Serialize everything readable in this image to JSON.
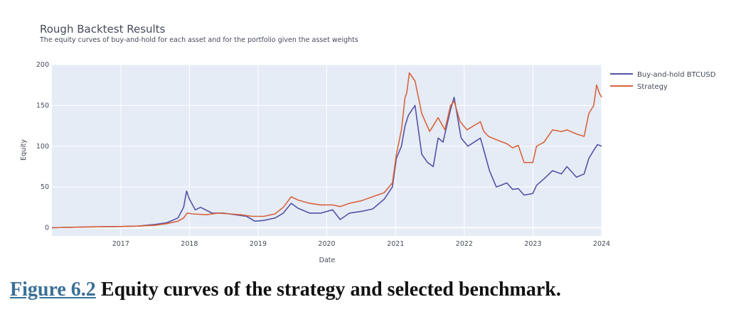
{
  "chart_data": {
    "type": "line",
    "title": "Rough Backtest Results",
    "subtitle": "The equity curves of buy-and-hold for each asset and for the portfolio given the asset weights",
    "xlabel": "Date",
    "ylabel": "Equity",
    "xlim": [
      "2016-01-01",
      "2024-01-01"
    ],
    "ylim": [
      -10,
      200
    ],
    "x_ticks": [
      "2017",
      "2018",
      "2019",
      "2020",
      "2021",
      "2022",
      "2023",
      "2024"
    ],
    "y_ticks": [
      0,
      50,
      100,
      150,
      200
    ],
    "grid": true,
    "legend_position": "top-right",
    "series": [
      {
        "name": "Buy-and-hold BTCUSD",
        "color": "#5452a6",
        "points": [
          [
            "2016-01-01",
            0
          ],
          [
            "2016-07-01",
            1
          ],
          [
            "2017-01-01",
            1.5
          ],
          [
            "2017-04-01",
            2
          ],
          [
            "2017-07-01",
            4
          ],
          [
            "2017-09-01",
            6
          ],
          [
            "2017-11-01",
            12
          ],
          [
            "2017-12-01",
            25
          ],
          [
            "2017-12-17",
            45
          ],
          [
            "2018-01-01",
            35
          ],
          [
            "2018-02-01",
            22
          ],
          [
            "2018-03-01",
            25
          ],
          [
            "2018-05-01",
            18
          ],
          [
            "2018-07-01",
            18
          ],
          [
            "2018-09-01",
            16
          ],
          [
            "2018-11-01",
            14
          ],
          [
            "2018-12-15",
            8
          ],
          [
            "2019-02-01",
            9
          ],
          [
            "2019-04-01",
            12
          ],
          [
            "2019-05-15",
            18
          ],
          [
            "2019-06-26",
            30
          ],
          [
            "2019-08-01",
            24
          ],
          [
            "2019-10-01",
            18
          ],
          [
            "2019-12-01",
            18
          ],
          [
            "2020-02-01",
            22
          ],
          [
            "2020-03-12",
            10
          ],
          [
            "2020-05-01",
            18
          ],
          [
            "2020-07-01",
            20
          ],
          [
            "2020-09-01",
            23
          ],
          [
            "2020-11-01",
            35
          ],
          [
            "2020-12-15",
            50
          ],
          [
            "2021-01-05",
            85
          ],
          [
            "2021-02-01",
            100
          ],
          [
            "2021-02-20",
            125
          ],
          [
            "2021-03-10",
            138
          ],
          [
            "2021-04-14",
            150
          ],
          [
            "2021-05-20",
            90
          ],
          [
            "2021-06-20",
            80
          ],
          [
            "2021-07-20",
            75
          ],
          [
            "2021-08-15",
            110
          ],
          [
            "2021-09-10",
            105
          ],
          [
            "2021-10-20",
            145
          ],
          [
            "2021-11-08",
            160
          ],
          [
            "2021-12-15",
            110
          ],
          [
            "2022-01-20",
            100
          ],
          [
            "2022-03-28",
            110
          ],
          [
            "2022-04-15",
            95
          ],
          [
            "2022-05-15",
            70
          ],
          [
            "2022-06-20",
            50
          ],
          [
            "2022-07-15",
            52
          ],
          [
            "2022-08-15",
            55
          ],
          [
            "2022-09-15",
            47
          ],
          [
            "2022-10-15",
            48
          ],
          [
            "2022-11-15",
            40
          ],
          [
            "2022-12-31",
            42
          ],
          [
            "2023-01-20",
            52
          ],
          [
            "2023-03-01",
            60
          ],
          [
            "2023-04-15",
            70
          ],
          [
            "2023-06-01",
            66
          ],
          [
            "2023-07-01",
            75
          ],
          [
            "2023-08-20",
            62
          ],
          [
            "2023-09-30",
            66
          ],
          [
            "2023-10-25",
            85
          ],
          [
            "2023-11-20",
            95
          ],
          [
            "2023-12-10",
            102
          ],
          [
            "2024-01-01",
            100
          ]
        ]
      },
      {
        "name": "Strategy",
        "color": "#d8643c",
        "points": [
          [
            "2016-01-01",
            0
          ],
          [
            "2016-07-01",
            1
          ],
          [
            "2017-01-01",
            1.5
          ],
          [
            "2017-04-01",
            2
          ],
          [
            "2017-07-01",
            3
          ],
          [
            "2017-09-01",
            5
          ],
          [
            "2017-11-01",
            8
          ],
          [
            "2017-12-01",
            12
          ],
          [
            "2017-12-20",
            18
          ],
          [
            "2018-01-15",
            17
          ],
          [
            "2018-04-01",
            16
          ],
          [
            "2018-06-01",
            18
          ],
          [
            "2018-08-01",
            17
          ],
          [
            "2018-10-01",
            16
          ],
          [
            "2018-12-01",
            14
          ],
          [
            "2019-02-01",
            14
          ],
          [
            "2019-04-01",
            17
          ],
          [
            "2019-05-15",
            25
          ],
          [
            "2019-06-26",
            38
          ],
          [
            "2019-08-01",
            34
          ],
          [
            "2019-10-01",
            30
          ],
          [
            "2019-12-01",
            28
          ],
          [
            "2020-02-01",
            28
          ],
          [
            "2020-03-12",
            26
          ],
          [
            "2020-05-01",
            30
          ],
          [
            "2020-07-01",
            33
          ],
          [
            "2020-09-01",
            38
          ],
          [
            "2020-11-01",
            43
          ],
          [
            "2020-12-15",
            55
          ],
          [
            "2021-01-05",
            90
          ],
          [
            "2021-02-01",
            120
          ],
          [
            "2021-02-20",
            160
          ],
          [
            "2021-03-01",
            165
          ],
          [
            "2021-03-15",
            190
          ],
          [
            "2021-04-14",
            180
          ],
          [
            "2021-05-20",
            140
          ],
          [
            "2021-07-01",
            118
          ],
          [
            "2021-08-15",
            135
          ],
          [
            "2021-09-20",
            120
          ],
          [
            "2021-10-20",
            150
          ],
          [
            "2021-11-08",
            155
          ],
          [
            "2021-12-10",
            130
          ],
          [
            "2022-01-15",
            120
          ],
          [
            "2022-02-20",
            125
          ],
          [
            "2022-03-28",
            130
          ],
          [
            "2022-04-15",
            118
          ],
          [
            "2022-05-10",
            112
          ],
          [
            "2022-06-20",
            108
          ],
          [
            "2022-08-15",
            103
          ],
          [
            "2022-09-15",
            98
          ],
          [
            "2022-10-15",
            101
          ],
          [
            "2022-11-15",
            80
          ],
          [
            "2022-12-31",
            80
          ],
          [
            "2023-01-20",
            100
          ],
          [
            "2023-03-01",
            105
          ],
          [
            "2023-04-15",
            120
          ],
          [
            "2023-06-01",
            118
          ],
          [
            "2023-07-01",
            120
          ],
          [
            "2023-08-20",
            115
          ],
          [
            "2023-09-30",
            112
          ],
          [
            "2023-10-25",
            140
          ],
          [
            "2023-11-20",
            150
          ],
          [
            "2023-12-05",
            175
          ],
          [
            "2023-12-20",
            165
          ],
          [
            "2024-01-01",
            160
          ]
        ]
      }
    ]
  },
  "caption": {
    "figure_ref": "Figure 6.2",
    "text": " Equity curves of the strategy and selected benchmark."
  }
}
